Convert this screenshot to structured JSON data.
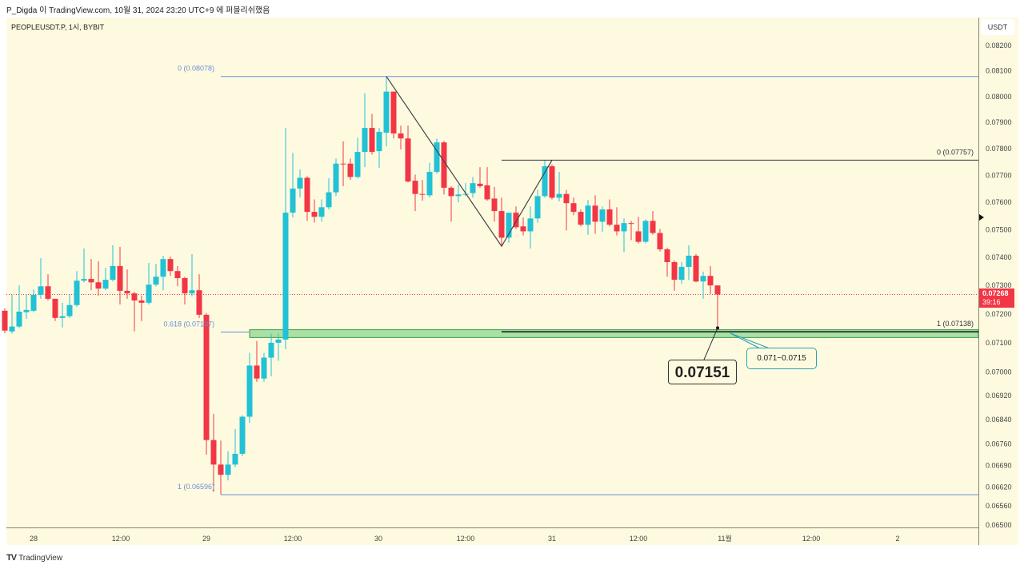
{
  "header": {
    "publish_info": "P_Digda 이 TradingView.com, 10월 31, 2024 23:20 UTC+9 에 퍼블리쉬했음",
    "symbol_info": "PEOPLEUSDT.P, 1시, BYBIT"
  },
  "footer": {
    "brand": "TradingView",
    "logo_text": "TV"
  },
  "colors": {
    "background": "#fefae0",
    "up": "#22c1d6",
    "down": "#f23645",
    "fib_left": "#6b8fd9",
    "fib_right": "#333333",
    "zone_fill": "#a9e0a4",
    "zone_border": "#3d9a4a"
  },
  "price_axis": {
    "currency": "USDT",
    "ticks": [
      "0.08200",
      "0.08100",
      "0.08000",
      "0.07900",
      "0.07800",
      "0.07700",
      "0.07600",
      "0.07500",
      "0.07400",
      "0.07300",
      "0.07200",
      "0.07100",
      "0.07000",
      "0.06920",
      "0.06840",
      "0.06760",
      "0.06690",
      "0.06620",
      "0.06560",
      "0.06500"
    ],
    "last_price": "0.07268",
    "countdown": "39:16"
  },
  "time_axis": {
    "labels": [
      "28",
      "12:00",
      "29",
      "12:00",
      "30",
      "12:00",
      "31",
      "12:00",
      "11월",
      "12:00",
      "2"
    ]
  },
  "drawings": {
    "fib_left": {
      "level0_label": "0 (0.08078)",
      "level0_price": 0.08078,
      "level618_label": "0.618 (0.07137)",
      "level618_price": 0.07137,
      "level1_label": "1 (0.06596)",
      "level1_price": 0.06596
    },
    "fib_right": {
      "level0_label": "0 (0.07757)",
      "level0_price": 0.07757,
      "level1_label": "1 (0.07138)",
      "level1_price": 0.07138
    },
    "zone": {
      "top": 0.07145,
      "bottom": 0.07118
    },
    "zigzag": [
      {
        "candle": 53,
        "price": 0.08078
      },
      {
        "candle": 69,
        "price": 0.0744
      },
      {
        "candle": 76,
        "price": 0.07757
      }
    ],
    "callout_low": {
      "text": "0.07151",
      "candle": 99,
      "price": 0.07151
    },
    "callout_zone": {
      "text": "0.071~0.0715"
    }
  },
  "chart_data": {
    "type": "candlestick",
    "title": "PEOPLEUSDT.P, 1시, BYBIT",
    "ylabel": "USDT",
    "yscale": "log",
    "ylim": [
      0.065,
      0.0825
    ],
    "ohlc": [
      [
        0.07211,
        0.07219,
        0.07133,
        0.07142
      ],
      [
        0.07139,
        0.07267,
        0.07131,
        0.07156
      ],
      [
        0.07156,
        0.073,
        0.0715,
        0.07208
      ],
      [
        0.07206,
        0.07269,
        0.07183,
        0.07214
      ],
      [
        0.07211,
        0.07286,
        0.07206,
        0.07267
      ],
      [
        0.07267,
        0.07397,
        0.07253,
        0.07297
      ],
      [
        0.07297,
        0.0734,
        0.07247,
        0.07253
      ],
      [
        0.07253,
        0.07253,
        0.07175,
        0.07186
      ],
      [
        0.07186,
        0.07239,
        0.07153,
        0.07192
      ],
      [
        0.07192,
        0.07269,
        0.07186,
        0.07231
      ],
      [
        0.07231,
        0.07351,
        0.07225,
        0.07317
      ],
      [
        0.07317,
        0.07432,
        0.07311,
        0.07323
      ],
      [
        0.07323,
        0.07394,
        0.07283,
        0.07311
      ],
      [
        0.07311,
        0.07386,
        0.07264,
        0.07289
      ],
      [
        0.07289,
        0.07363,
        0.07283,
        0.0732
      ],
      [
        0.0732,
        0.07444,
        0.07314,
        0.07369
      ],
      [
        0.07369,
        0.07438,
        0.07233,
        0.07281
      ],
      [
        0.07281,
        0.07357,
        0.07253,
        0.07272
      ],
      [
        0.07272,
        0.07278,
        0.07139,
        0.07247
      ],
      [
        0.07247,
        0.07264,
        0.07175,
        0.07239
      ],
      [
        0.07239,
        0.0738,
        0.07233,
        0.07303
      ],
      [
        0.07303,
        0.07377,
        0.07297,
        0.07331
      ],
      [
        0.07331,
        0.07406,
        0.07283,
        0.07394
      ],
      [
        0.07394,
        0.07403,
        0.07334,
        0.07351
      ],
      [
        0.07351,
        0.07369,
        0.07297,
        0.07326
      ],
      [
        0.07326,
        0.07331,
        0.07233,
        0.07272
      ],
      [
        0.07272,
        0.07412,
        0.07261,
        0.07283
      ],
      [
        0.07283,
        0.0734,
        0.07186,
        0.07197
      ],
      [
        0.07197,
        0.07203,
        0.06725,
        0.06773
      ],
      [
        0.06773,
        0.0686,
        0.06605,
        0.06693
      ],
      [
        0.06693,
        0.06771,
        0.06596,
        0.0666
      ],
      [
        0.0666,
        0.06736,
        0.06642,
        0.06693
      ],
      [
        0.06693,
        0.06809,
        0.06685,
        0.06728
      ],
      [
        0.06728,
        0.06855,
        0.0672,
        0.0685
      ],
      [
        0.0685,
        0.07065,
        0.0683,
        0.07022
      ],
      [
        0.07022,
        0.07106,
        0.06967,
        0.06978
      ],
      [
        0.06978,
        0.07065,
        0.06967,
        0.07049
      ],
      [
        0.07049,
        0.07131,
        0.06986,
        0.071
      ],
      [
        0.071,
        0.07131,
        0.07038,
        0.07111
      ],
      [
        0.07111,
        0.07879,
        0.07078,
        0.07562
      ],
      [
        0.07562,
        0.07784,
        0.07544,
        0.07651
      ],
      [
        0.07651,
        0.07722,
        0.07618,
        0.07691
      ],
      [
        0.07691,
        0.07697,
        0.07532,
        0.07565
      ],
      [
        0.07565,
        0.07611,
        0.07526,
        0.07547
      ],
      [
        0.07547,
        0.07611,
        0.07529,
        0.07582
      ],
      [
        0.07582,
        0.07689,
        0.07574,
        0.07637
      ],
      [
        0.07637,
        0.07763,
        0.07623,
        0.07744
      ],
      [
        0.07744,
        0.07828,
        0.0766,
        0.07741
      ],
      [
        0.07744,
        0.07763,
        0.07683,
        0.07694
      ],
      [
        0.07694,
        0.07842,
        0.07689,
        0.07788
      ],
      [
        0.07788,
        0.08012,
        0.07731,
        0.07879
      ],
      [
        0.07879,
        0.07933,
        0.07778,
        0.07788
      ],
      [
        0.07791,
        0.07879,
        0.07728,
        0.07864
      ],
      [
        0.07861,
        0.08078,
        0.07809,
        0.08019
      ],
      [
        0.08019,
        0.08019,
        0.07839,
        0.07858
      ],
      [
        0.07858,
        0.07888,
        0.07797,
        0.07839
      ],
      [
        0.07839,
        0.07888,
        0.07674,
        0.07677
      ],
      [
        0.0768,
        0.07703,
        0.07568,
        0.07631
      ],
      [
        0.07631,
        0.07683,
        0.07606,
        0.07629
      ],
      [
        0.07626,
        0.07747,
        0.07617,
        0.07713
      ],
      [
        0.07713,
        0.07839,
        0.07706,
        0.07824
      ],
      [
        0.07824,
        0.0783,
        0.07629,
        0.07654
      ],
      [
        0.07654,
        0.0766,
        0.07529,
        0.07623
      ],
      [
        0.07623,
        0.07666,
        0.076,
        0.07629
      ],
      [
        0.07629,
        0.07671,
        0.07623,
        0.07631
      ],
      [
        0.07634,
        0.07694,
        0.07617,
        0.07671
      ],
      [
        0.07669,
        0.07731,
        0.07654,
        0.0766
      ],
      [
        0.07663,
        0.07731,
        0.07606,
        0.07611
      ],
      [
        0.07614,
        0.07657,
        0.07529,
        0.07568
      ],
      [
        0.07568,
        0.07617,
        0.07441,
        0.07471
      ],
      [
        0.07471,
        0.07562,
        0.07453,
        0.07562
      ],
      [
        0.07562,
        0.07585,
        0.07503,
        0.07509
      ],
      [
        0.07512,
        0.07544,
        0.07479,
        0.07494
      ],
      [
        0.07494,
        0.07585,
        0.07432,
        0.07541
      ],
      [
        0.07541,
        0.07646,
        0.07526,
        0.07623
      ],
      [
        0.07623,
        0.07756,
        0.07617,
        0.07734
      ],
      [
        0.07734,
        0.07741,
        0.07611,
        0.07617
      ],
      [
        0.07617,
        0.07713,
        0.07603,
        0.07631
      ],
      [
        0.07631,
        0.07646,
        0.07497,
        0.07597
      ],
      [
        0.07597,
        0.07617,
        0.07553,
        0.07565
      ],
      [
        0.07565,
        0.07574,
        0.07512,
        0.07518
      ],
      [
        0.07518,
        0.07609,
        0.07482,
        0.07588
      ],
      [
        0.07588,
        0.07626,
        0.07485,
        0.07529
      ],
      [
        0.07529,
        0.07585,
        0.07491,
        0.07574
      ],
      [
        0.07574,
        0.07611,
        0.07512,
        0.07518
      ],
      [
        0.07518,
        0.07582,
        0.07479,
        0.07494
      ],
      [
        0.07494,
        0.07541,
        0.07418,
        0.07524
      ],
      [
        0.07524,
        0.07532,
        0.07462,
        0.07521
      ],
      [
        0.07494,
        0.07547,
        0.0745,
        0.07456
      ],
      [
        0.07456,
        0.07538,
        0.0745,
        0.07532
      ],
      [
        0.07532,
        0.07568,
        0.07482,
        0.07488
      ],
      [
        0.07488,
        0.07503,
        0.07421,
        0.07429
      ],
      [
        0.07429,
        0.07435,
        0.07331,
        0.07383
      ],
      [
        0.07383,
        0.07389,
        0.07281,
        0.0732
      ],
      [
        0.0732,
        0.07383,
        0.07306,
        0.07366
      ],
      [
        0.07366,
        0.07444,
        0.0732,
        0.07406
      ],
      [
        0.07406,
        0.07412,
        0.07311,
        0.07314
      ],
      [
        0.07314,
        0.07349,
        0.07253,
        0.07334
      ],
      [
        0.07334,
        0.07369,
        0.07269,
        0.073
      ],
      [
        0.073,
        0.073,
        0.07151,
        0.07268
      ]
    ]
  }
}
